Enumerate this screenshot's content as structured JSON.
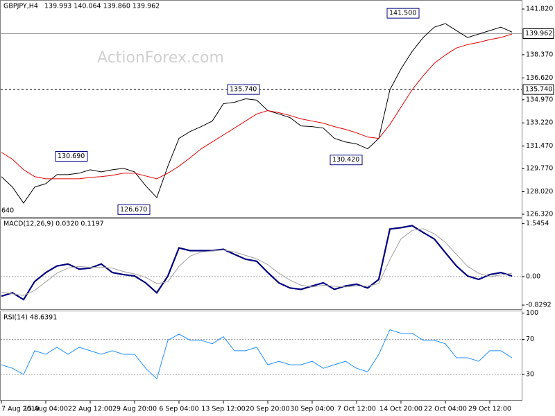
{
  "header": {
    "symbol": "GBPJPY,H4",
    "quote": "139.993 140.064 139.860 139.962"
  },
  "watermark": "ActionForex.com",
  "chart_data": [
    {
      "type": "line",
      "series": [
        {
          "name": "GBPJPY close",
          "color": "#000000",
          "values": [
            129.16,
            128.37,
            127.16,
            128.37,
            128.63,
            129.31,
            129.31,
            129.42,
            129.68,
            129.52,
            129.68,
            129.79,
            129.52,
            128.47,
            127.58,
            129.95,
            132.05,
            132.57,
            132.94,
            133.36,
            134.67,
            134.78,
            135.04,
            134.94,
            134.15,
            133.89,
            133.62,
            132.99,
            132.94,
            132.83,
            132.05,
            131.78,
            131.63,
            131.26,
            132.05,
            135.72,
            137.3,
            138.61,
            139.67,
            140.45,
            140.72,
            140.19,
            139.67,
            139.93,
            140.19,
            140.45,
            140.08
          ]
        },
        {
          "name": "MA",
          "color": "#e00000",
          "values": [
            131.0,
            130.47,
            129.68,
            129.16,
            129.0,
            129.0,
            129.0,
            129.0,
            129.1,
            129.16,
            129.26,
            129.42,
            129.42,
            129.21,
            129.0,
            129.42,
            129.95,
            130.58,
            131.26,
            131.78,
            132.31,
            132.83,
            133.36,
            133.89,
            134.15,
            133.99,
            133.78,
            133.52,
            133.36,
            133.2,
            132.94,
            132.73,
            132.47,
            132.15,
            132.05,
            133.1,
            134.41,
            135.72,
            136.78,
            137.72,
            138.35,
            138.88,
            139.14,
            139.3,
            139.51,
            139.67,
            139.93
          ]
        }
      ],
      "ylim": [
        126.11,
        142.45
      ],
      "yticks": [
        {
          "value": 141.82,
          "label": "141.820"
        },
        {
          "value": 138.37,
          "label": "138.370"
        },
        {
          "value": 136.62,
          "label": "136.620"
        },
        {
          "value": 134.97,
          "label": "134.970"
        },
        {
          "value": 133.22,
          "label": "133.220"
        },
        {
          "value": 131.47,
          "label": "131.470"
        },
        {
          "value": 129.77,
          "label": "129.770"
        },
        {
          "value": 128.02,
          "label": "128.020"
        },
        {
          "value": 126.32,
          "label": "126.320"
        }
      ],
      "levels": [
        {
          "value": 139.962,
          "label": "139.962",
          "style": "solid"
        },
        {
          "value": 135.74,
          "label": "135.740",
          "style": "dashed"
        }
      ],
      "annotations": [
        {
          "value": 141.5,
          "label": "141.500"
        },
        {
          "value": 135.74,
          "label": "135.740"
        },
        {
          "value": 130.69,
          "label": "130.690"
        },
        {
          "value": 130.42,
          "label": "130.420"
        },
        {
          "value": 126.67,
          "label": "126.670"
        }
      ],
      "clipped_label": "640"
    },
    {
      "type": "line",
      "title": "MACD(12,26,9) 0.0320 0.1197",
      "series": [
        {
          "name": "MACD",
          "color": "#000080",
          "values": [
            -0.57,
            -0.47,
            -0.67,
            -0.14,
            0.12,
            0.31,
            0.37,
            0.22,
            0.25,
            0.37,
            0.12,
            0.06,
            0.02,
            -0.18,
            -0.47,
            0.02,
            0.84,
            0.76,
            0.76,
            0.76,
            0.8,
            0.65,
            0.51,
            0.45,
            0.12,
            -0.18,
            -0.33,
            -0.37,
            -0.27,
            -0.18,
            -0.37,
            -0.27,
            -0.22,
            -0.33,
            -0.08,
            1.39,
            1.43,
            1.49,
            1.29,
            1.1,
            0.7,
            0.31,
            0.02,
            -0.08,
            0.06,
            0.12,
            0.02
          ]
        },
        {
          "name": "Signal",
          "color": "#a0a0a0",
          "values": [
            -0.45,
            -0.5,
            -0.55,
            -0.4,
            -0.15,
            0.1,
            0.25,
            0.3,
            0.27,
            0.28,
            0.25,
            0.15,
            0.08,
            -0.02,
            -0.2,
            -0.15,
            0.3,
            0.6,
            0.72,
            0.75,
            0.78,
            0.72,
            0.62,
            0.52,
            0.35,
            0.1,
            -0.1,
            -0.25,
            -0.3,
            -0.25,
            -0.28,
            -0.3,
            -0.27,
            -0.28,
            -0.2,
            0.5,
            1.1,
            1.35,
            1.4,
            1.25,
            1.0,
            0.65,
            0.3,
            0.1,
            0.0,
            0.05,
            0.1
          ]
        }
      ],
      "ylim": [
        -0.97,
        1.68
      ],
      "yticks": [
        1.5454,
        {
          "value": 0,
          "label": "0.00"
        },
        -0.8292
      ]
    },
    {
      "type": "line",
      "title": "RSI(14) 48.6391",
      "series": [
        {
          "name": "RSI",
          "color": "#1e90ff",
          "values": [
            41,
            37,
            30,
            57,
            53,
            61,
            53,
            61,
            57,
            53,
            57,
            53,
            53,
            37,
            25,
            69,
            76,
            69,
            69,
            65,
            73,
            57,
            57,
            61,
            41,
            45,
            41,
            41,
            45,
            37,
            41,
            45,
            37,
            33,
            53,
            81,
            77,
            77,
            69,
            69,
            65,
            49,
            49,
            45,
            57,
            57,
            49
          ]
        }
      ],
      "ylim": [
        0,
        102
      ],
      "yticks": [
        100,
        70,
        30
      ],
      "categories": [
        "7 Aug 2019",
        null,
        null,
        null,
        "15 Aug 04:00",
        null,
        null,
        null,
        "22 Aug 12:00",
        null,
        null,
        null,
        "29 Aug 20:00",
        null,
        null,
        null,
        "6 Sep 04:00",
        null,
        null,
        null,
        "13 Sep 12:00",
        null,
        null,
        null,
        "20 Sep 20:00",
        null,
        null,
        null,
        "30 Sep 04:00",
        null,
        null,
        null,
        "7 Oct 12:00",
        null,
        null,
        null,
        "14 Oct 20:00",
        null,
        null,
        null,
        "22 Oct 04:00",
        null,
        null,
        null,
        "29 Oct 12:00",
        null,
        null
      ]
    }
  ]
}
